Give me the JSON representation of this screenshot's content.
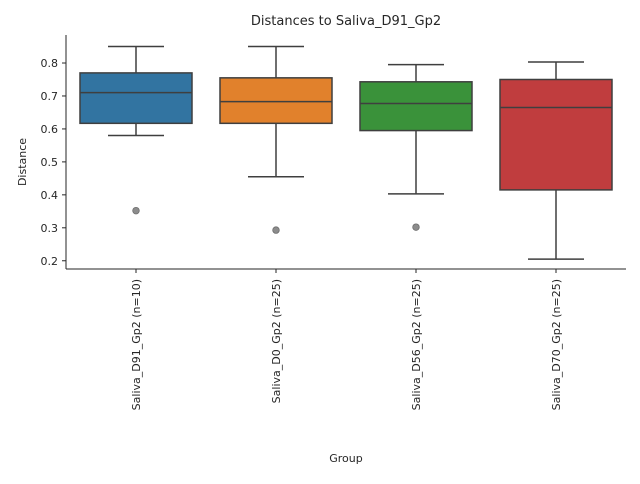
{
  "chart_data": {
    "type": "boxplot",
    "title": "Distances to Saliva_D91_Gp2",
    "xlabel": "Group",
    "ylabel": "Distance",
    "ylim": [
      0.175,
      0.885
    ],
    "yticks": [
      0.2,
      0.3,
      0.4,
      0.5,
      0.6,
      0.7,
      0.8
    ],
    "ytick_labels": [
      "0.2",
      "0.3",
      "0.4",
      "0.5",
      "0.6",
      "0.7",
      "0.8"
    ],
    "grid": false,
    "categories": [
      "Saliva_D91_Gp2 (n=10)",
      "Saliva_D0_Gp2 (n=25)",
      "Saliva_D56_Gp2 (n=25)",
      "Saliva_D70_Gp2 (n=25)"
    ],
    "boxes": [
      {
        "whisker_low": 0.58,
        "q1": 0.617,
        "median": 0.71,
        "q3": 0.77,
        "whisker_high": 0.85,
        "outliers": [
          0.352
        ],
        "color": "#3274a1"
      },
      {
        "whisker_low": 0.455,
        "q1": 0.617,
        "median": 0.683,
        "q3": 0.755,
        "whisker_high": 0.85,
        "outliers": [
          0.293
        ],
        "color": "#e1812c"
      },
      {
        "whisker_low": 0.403,
        "q1": 0.595,
        "median": 0.677,
        "q3": 0.743,
        "whisker_high": 0.795,
        "outliers": [
          0.302
        ],
        "color": "#3a923a"
      },
      {
        "whisker_low": 0.205,
        "q1": 0.415,
        "median": 0.665,
        "q3": 0.75,
        "whisker_high": 0.803,
        "outliers": [],
        "color": "#c03d3e"
      }
    ]
  }
}
